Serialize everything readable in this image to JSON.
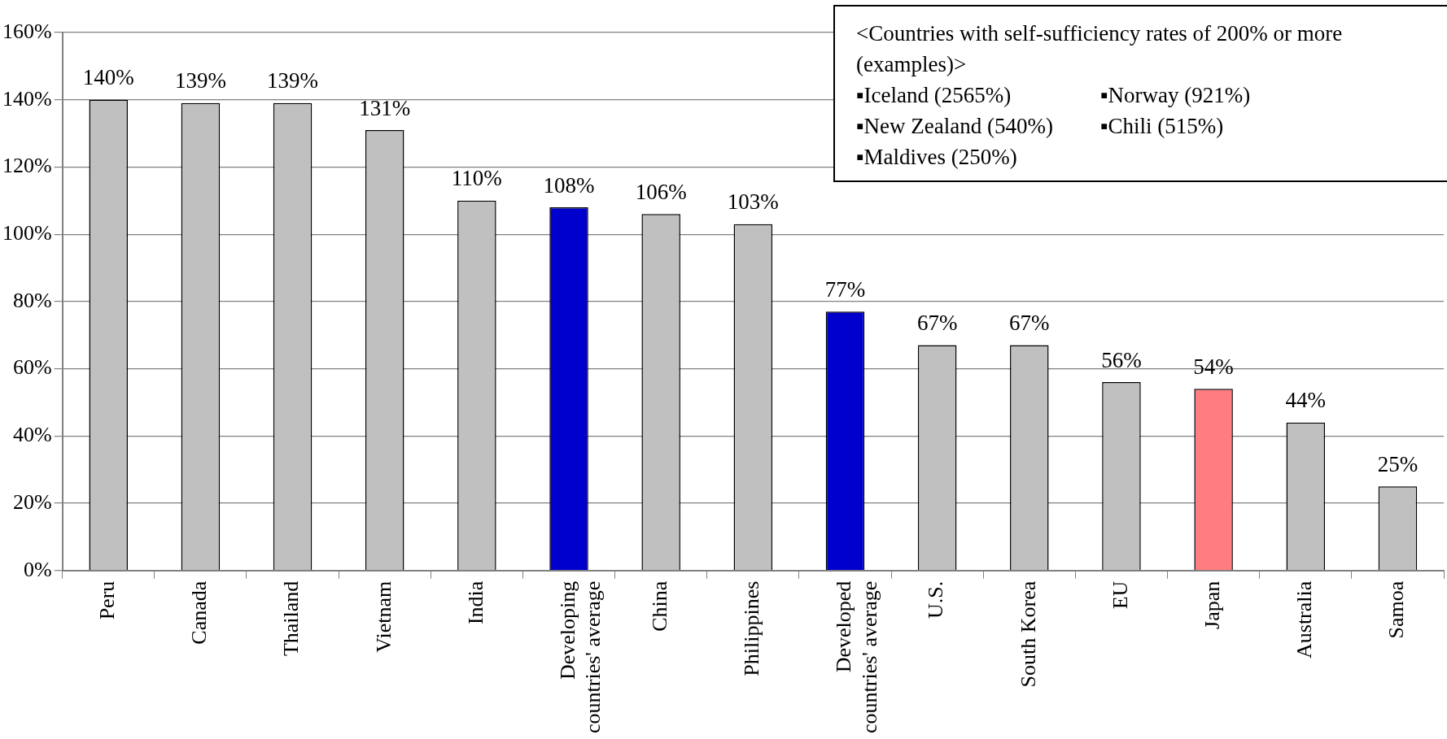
{
  "chart_data": {
    "type": "bar",
    "categories": [
      "Peru",
      "Canada",
      "Thailand",
      "Vietnam",
      "India",
      "Developing countries' average",
      "China",
      "Philippines",
      "Developed countries' average",
      "U.S.",
      "South Korea",
      "EU",
      "Japan",
      "Australia",
      "Samoa"
    ],
    "values": [
      140,
      139,
      139,
      131,
      110,
      108,
      106,
      103,
      77,
      67,
      67,
      56,
      54,
      44,
      25
    ],
    "value_labels": [
      "140%",
      "139%",
      "139%",
      "131%",
      "110%",
      "108%",
      "106%",
      "103%",
      "77%",
      "67%",
      "67%",
      "56%",
      "54%",
      "44%",
      "25%"
    ],
    "colors": [
      "#c0c0c0",
      "#c0c0c0",
      "#c0c0c0",
      "#c0c0c0",
      "#c0c0c0",
      "#0000cc",
      "#c0c0c0",
      "#c0c0c0",
      "#0000cc",
      "#c0c0c0",
      "#c0c0c0",
      "#c0c0c0",
      "#ff7c80",
      "#c0c0c0",
      "#c0c0c0"
    ],
    "ylim": [
      0,
      160
    ],
    "yticks": [
      {
        "value": 0,
        "label": "0%"
      },
      {
        "value": 20,
        "label": "20%"
      },
      {
        "value": 40,
        "label": "40%"
      },
      {
        "value": 60,
        "label": "60%"
      },
      {
        "value": 80,
        "label": "80%"
      },
      {
        "value": 100,
        "label": "100%"
      },
      {
        "value": 120,
        "label": "120%"
      },
      {
        "value": 140,
        "label": "140%"
      },
      {
        "value": 160,
        "label": "160%"
      }
    ],
    "grid": "y",
    "legend": false,
    "annotations": [
      "<Countries with self-sufficiency rates of 200% or more (examples)>",
      "▪Iceland (2565%)",
      "▪Norway (921%)",
      "▪New Zealand (540%)",
      "▪Chili (515%)",
      "▪Maldives (250%)"
    ]
  }
}
